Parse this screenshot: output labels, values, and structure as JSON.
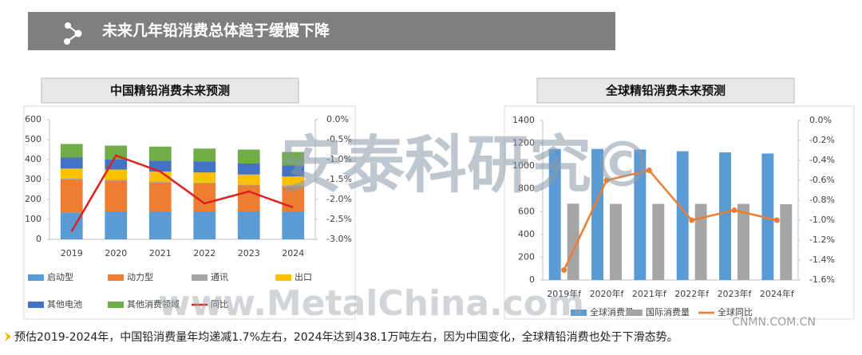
{
  "header": {
    "title": "未来几年铅消费总体趋于缓慢下降"
  },
  "footnote": "预估2019-2024年，中国铅消费量年均递减1.7%左右，2024年达到438.1万吨左右，因为中国变化，全球精铅消费也处于下滑态势。",
  "watermarks": [
    "安泰科研究©",
    "www.MetalChina.com",
    "CNMN.COM.CN"
  ],
  "chart_data": [
    {
      "type": "bar",
      "stacked": true,
      "title": "中国精铅消费未来预测",
      "categories": [
        "2019",
        "2020",
        "2021",
        "2022",
        "2023",
        "2024"
      ],
      "ylim": [
        0,
        600
      ],
      "yticks": [
        0,
        100,
        200,
        300,
        400,
        500,
        600
      ],
      "y2lim": [
        -3.0,
        0.0
      ],
      "y2ticks": [
        {
          "value": 0.0,
          "label": "0.0%"
        },
        {
          "value": -0.5,
          "label": "-0.5%"
        },
        {
          "value": -1.0,
          "label": "-1.0%"
        },
        {
          "value": -1.5,
          "label": "-1.5%"
        },
        {
          "value": -2.0,
          "label": "-2.0%"
        },
        {
          "value": -2.5,
          "label": "-2.5%"
        },
        {
          "value": -3.0,
          "label": "-3.0%"
        }
      ],
      "series": [
        {
          "name": "启动型",
          "color": "#5b9bd5",
          "values": [
            135,
            140,
            140,
            140,
            140,
            140
          ]
        },
        {
          "name": "动力型",
          "color": "#ed7d31",
          "values": [
            165,
            155,
            145,
            140,
            130,
            125
          ]
        },
        {
          "name": "通讯",
          "color": "#a5a5a5",
          "values": [
            5,
            5,
            5,
            5,
            5,
            5
          ]
        },
        {
          "name": "出口",
          "color": "#ffc000",
          "values": [
            50,
            50,
            50,
            50,
            50,
            45
          ]
        },
        {
          "name": "其他电池",
          "color": "#4472c4",
          "values": [
            55,
            50,
            55,
            55,
            55,
            55
          ]
        },
        {
          "name": "其他消费领域",
          "color": "#70ad47",
          "values": [
            68,
            70,
            70,
            65,
            70,
            68
          ]
        },
        {
          "name": "同比",
          "color": "#e0201b",
          "kind": "line",
          "axis": "y2",
          "values": [
            -2.8,
            -0.9,
            -1.3,
            -2.1,
            -1.8,
            -2.2
          ]
        }
      ]
    },
    {
      "type": "bar",
      "stacked": false,
      "title": "全球精铅消费未来预测",
      "categories": [
        "2019年f",
        "2020年f",
        "2021年f",
        "2022年f",
        "2023年f",
        "2024年f"
      ],
      "ylim": [
        0,
        1400
      ],
      "yticks": [
        0,
        200,
        400,
        600,
        800,
        1000,
        1200,
        1400
      ],
      "y2lim": [
        -1.6,
        0.0
      ],
      "y2ticks": [
        {
          "value": 0.0,
          "label": "0.0%"
        },
        {
          "value": -0.2,
          "label": "-0.2%"
        },
        {
          "value": -0.4,
          "label": "-0.4%"
        },
        {
          "value": -0.6,
          "label": "-0.6%"
        },
        {
          "value": -0.8,
          "label": "-0.8%"
        },
        {
          "value": -1.0,
          "label": "-1.0%"
        },
        {
          "value": -1.2,
          "label": "-1.2%"
        },
        {
          "value": -1.4,
          "label": "-1.4%"
        },
        {
          "value": -1.6,
          "label": "-1.6%"
        }
      ],
      "series": [
        {
          "name": "全球消费量",
          "color": "#5b9bd5",
          "values": [
            1150,
            1150,
            1145,
            1130,
            1120,
            1110
          ]
        },
        {
          "name": "国际消费量",
          "color": "#a5a5a5",
          "values": [
            670,
            668,
            668,
            668,
            668,
            665
          ]
        },
        {
          "name": "全球同比",
          "color": "#ed7d31",
          "kind": "line",
          "axis": "y2",
          "values": [
            -1.5,
            -0.6,
            -0.5,
            -1.0,
            -0.9,
            -1.0
          ]
        }
      ]
    }
  ]
}
